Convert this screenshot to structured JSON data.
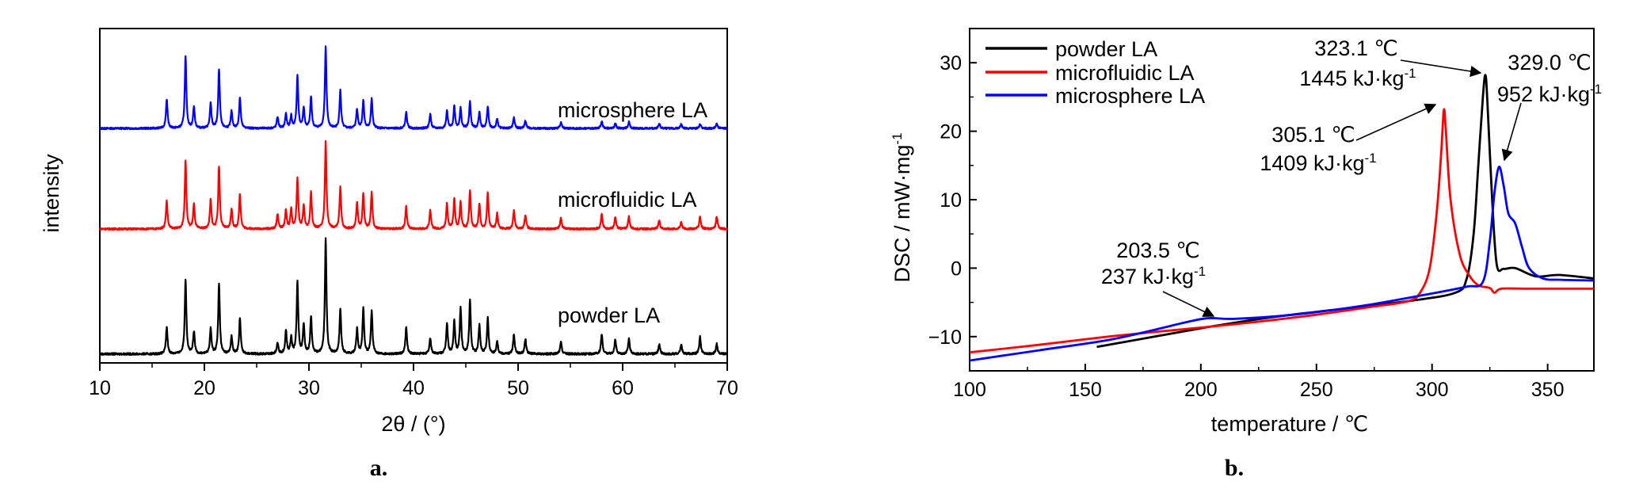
{
  "chart_data": [
    {
      "type": "line",
      "panel_label": "a.",
      "xlabel": "2θ / (°)",
      "ylabel": "intensity",
      "xlim": [
        10,
        70
      ],
      "xticks": [
        "10",
        "20",
        "30",
        "40",
        "50",
        "60",
        "70"
      ],
      "y_tick_labels": false,
      "grid": false,
      "peaks_2theta": [
        16.4,
        18.2,
        19.0,
        20.6,
        21.4,
        22.6,
        23.4,
        27.0,
        27.8,
        28.3,
        28.9,
        29.5,
        30.2,
        31.6,
        33.0,
        34.6,
        35.2,
        36.0,
        39.3,
        41.6,
        43.2,
        43.9,
        44.5,
        45.4,
        46.3,
        47.1,
        48.0,
        49.6,
        50.7,
        54.1,
        58.0,
        59.3,
        60.6,
        63.5,
        65.6,
        67.4,
        69.0
      ],
      "series": [
        {
          "name": "microsphere LA",
          "color": "#0000ff",
          "relative_intensity": [
            0.41,
            1.0,
            0.3,
            0.35,
            0.82,
            0.24,
            0.43,
            0.16,
            0.2,
            0.17,
            0.73,
            0.28,
            0.44,
            1.14,
            0.53,
            0.27,
            0.39,
            0.41,
            0.23,
            0.2,
            0.24,
            0.31,
            0.28,
            0.37,
            0.23,
            0.31,
            0.13,
            0.15,
            0.11,
            0.09,
            0.1,
            0.07,
            0.09,
            0.07,
            0.06,
            0.06,
            0.07
          ]
        },
        {
          "name": "microfluidic LA",
          "color": "#ff0000",
          "relative_intensity": [
            0.38,
            0.91,
            0.33,
            0.39,
            0.85,
            0.27,
            0.47,
            0.2,
            0.25,
            0.26,
            0.68,
            0.31,
            0.49,
            1.18,
            0.57,
            0.36,
            0.47,
            0.49,
            0.3,
            0.25,
            0.34,
            0.4,
            0.36,
            0.52,
            0.33,
            0.49,
            0.21,
            0.25,
            0.19,
            0.15,
            0.2,
            0.16,
            0.17,
            0.12,
            0.1,
            0.17,
            0.17
          ]
        },
        {
          "name": "powder LA",
          "color": "#000000",
          "relative_intensity": [
            0.34,
            0.94,
            0.28,
            0.32,
            0.88,
            0.22,
            0.45,
            0.14,
            0.29,
            0.2,
            0.91,
            0.36,
            0.46,
            1.45,
            0.57,
            0.31,
            0.57,
            0.54,
            0.34,
            0.2,
            0.38,
            0.41,
            0.58,
            0.67,
            0.36,
            0.45,
            0.16,
            0.24,
            0.19,
            0.15,
            0.25,
            0.18,
            0.2,
            0.12,
            0.12,
            0.22,
            0.13
          ]
        }
      ]
    },
    {
      "type": "line",
      "panel_label": "b.",
      "xlabel": "temperature / ℃",
      "ylabel": "DSC / mW·mg⁻¹",
      "xlim": [
        100,
        370
      ],
      "ylim": [
        -15,
        35
      ],
      "xticks": [
        100,
        150,
        200,
        250,
        300,
        350
      ],
      "yticks": [
        -10,
        0,
        10,
        20,
        30
      ],
      "grid": false,
      "legend": "top-left",
      "series": [
        {
          "name": "powder LA",
          "color": "#000000",
          "x": [
            155,
            180,
            205,
            230,
            260,
            290,
            310,
            315,
            318,
            320,
            322,
            323.1,
            324,
            326,
            328,
            331,
            336,
            345,
            355,
            370
          ],
          "y": [
            -11.5,
            -10,
            -8.5,
            -7.2,
            -6.0,
            -4.8,
            -3.6,
            -1.5,
            5,
            15,
            25,
            28.2,
            24,
            10,
            0.5,
            -0.1,
            0,
            -1.2,
            -1.0,
            -1.5
          ]
        },
        {
          "name": "microfluidic LA",
          "color": "#ff0000",
          "x": [
            100,
            130,
            160,
            190,
            220,
            250,
            275,
            290,
            295,
            299,
            302,
            304,
            305.1,
            306,
            308,
            312,
            316,
            320,
            325,
            327,
            330,
            340,
            370
          ],
          "y": [
            -12.3,
            -11.2,
            -10.0,
            -9.0,
            -8.0,
            -6.8,
            -5.6,
            -4.8,
            -3.5,
            0,
            8,
            17,
            23.1,
            20,
            10,
            2,
            -1.0,
            -2.5,
            -2.9,
            -3.6,
            -3.0,
            -3.0,
            -3.0
          ]
        },
        {
          "name": "microsphere LA",
          "color": "#0000ff",
          "x": [
            100,
            130,
            160,
            180,
            195,
            203.5,
            215,
            240,
            270,
            300,
            315,
            322,
            325,
            327,
            329.0,
            331,
            333,
            336,
            339,
            342,
            348,
            356,
            370
          ],
          "y": [
            -13.5,
            -12.0,
            -10.5,
            -9.0,
            -7.8,
            -7.3,
            -7.4,
            -6.8,
            -5.5,
            -3.7,
            -2.7,
            -2.0,
            4,
            11,
            14.8,
            12,
            8,
            6.5,
            3,
            0,
            -1.5,
            -1.7,
            -1.8
          ]
        }
      ],
      "annotations": [
        {
          "temp": "203.5 ℃",
          "enthalpy": "237 kJ·kg⁻¹"
        },
        {
          "temp": "305.1 ℃",
          "enthalpy": "1409 kJ·kg⁻¹"
        },
        {
          "temp": "323.1 ℃",
          "enthalpy": "1445 kJ·kg⁻¹"
        },
        {
          "temp": "329.0 ℃",
          "enthalpy": "952 kJ·kg⁻¹"
        }
      ]
    }
  ]
}
